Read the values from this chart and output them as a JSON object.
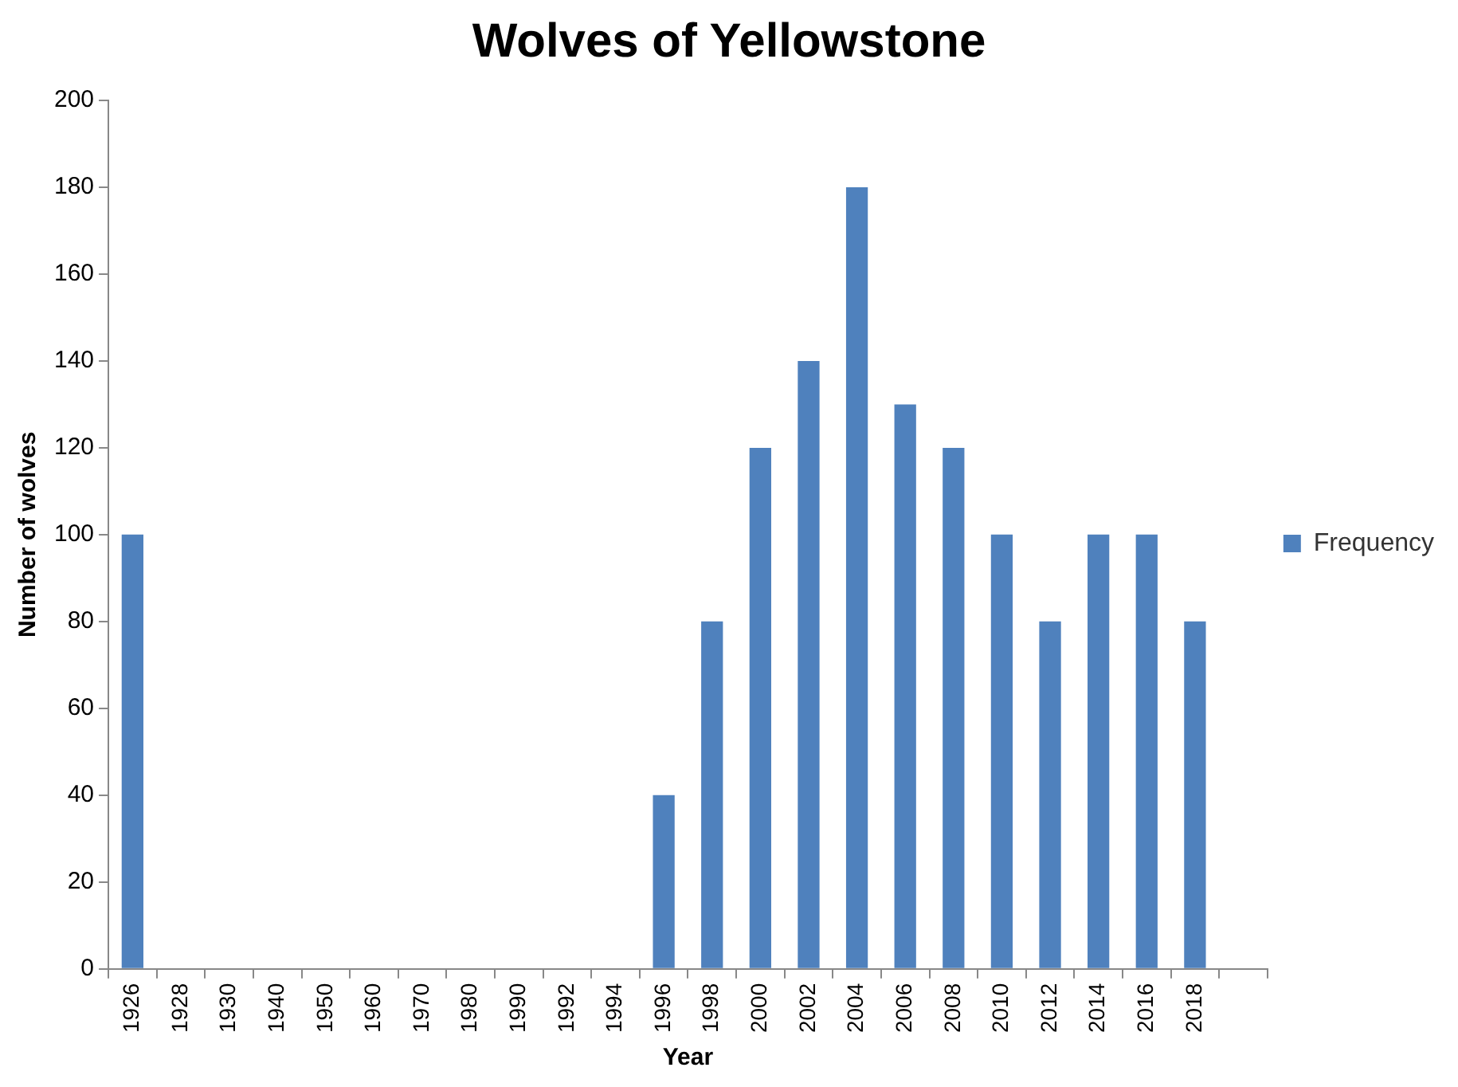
{
  "chart_data": {
    "type": "bar",
    "title": "Wolves of Yellowstone",
    "xlabel": "Year",
    "ylabel": "Number of wolves",
    "categories": [
      "1926",
      "1928",
      "1930",
      "1940",
      "1950",
      "1960",
      "1970",
      "1980",
      "1990",
      "1992",
      "1994",
      "1996",
      "1998",
      "2000",
      "2002",
      "2004",
      "2006",
      "2008",
      "2010",
      "2012",
      "2014",
      "2016",
      "2018",
      null
    ],
    "series": [
      {
        "name": "Frequency",
        "color": "#4f81bd",
        "values": [
          100,
          0,
          0,
          0,
          0,
          0,
          0,
          0,
          0,
          0,
          0,
          40,
          80,
          120,
          140,
          180,
          130,
          120,
          100,
          80,
          100,
          100,
          80,
          null
        ]
      }
    ],
    "ylim": [
      0,
      200
    ],
    "yticks": [
      0,
      20,
      40,
      60,
      80,
      100,
      120,
      140,
      160,
      180,
      200
    ],
    "grid": false,
    "legend": "right"
  }
}
